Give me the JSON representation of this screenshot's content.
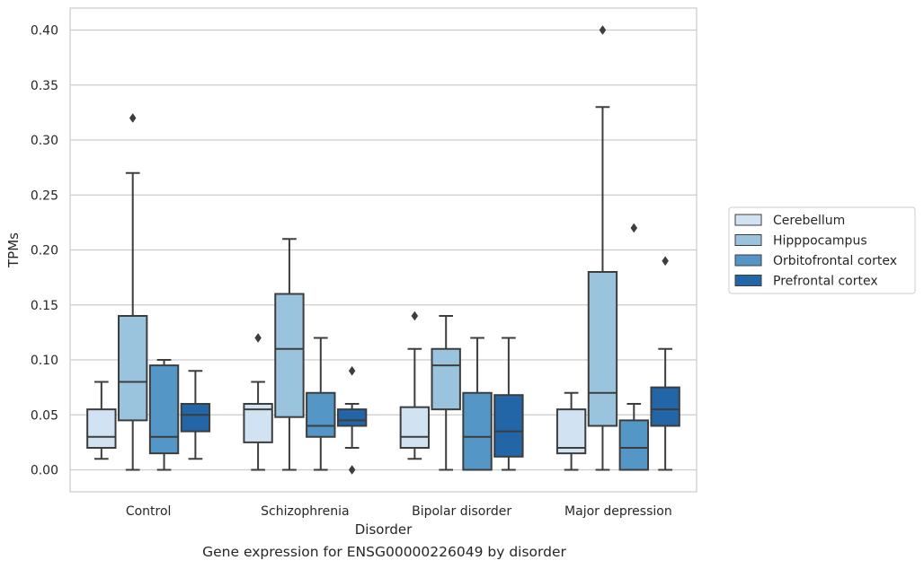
{
  "chart_data": {
    "type": "box",
    "title": "",
    "caption": "Gene expression for ENSG00000226049 by disorder",
    "xlabel": "Disorder",
    "ylabel": "TPMs",
    "ylim": [
      -0.02,
      0.42
    ],
    "yticks": [
      "0.00",
      "0.05",
      "0.10",
      "0.15",
      "0.20",
      "0.25",
      "0.30",
      "0.35",
      "0.40"
    ],
    "grid": true,
    "legend_position": "right",
    "categories": [
      "Control",
      "Schizophrenia",
      "Bipolar disorder",
      "Major depression"
    ],
    "series": [
      {
        "name": "Cerebellum",
        "color": "#d1e2f2",
        "boxes": [
          {
            "whislo": 0.01,
            "q1": 0.02,
            "med": 0.03,
            "q3": 0.055,
            "whishi": 0.08,
            "fliers": []
          },
          {
            "whislo": 0.0,
            "q1": 0.025,
            "med": 0.055,
            "q3": 0.06,
            "whishi": 0.08,
            "fliers": [
              0.12
            ]
          },
          {
            "whislo": 0.01,
            "q1": 0.02,
            "med": 0.03,
            "q3": 0.057,
            "whishi": 0.11,
            "fliers": [
              0.14
            ]
          },
          {
            "whislo": 0.0,
            "q1": 0.015,
            "med": 0.02,
            "q3": 0.055,
            "whishi": 0.07,
            "fliers": []
          }
        ]
      },
      {
        "name": "Hipppocampus",
        "color": "#9ac4de",
        "boxes": [
          {
            "whislo": 0.0,
            "q1": 0.045,
            "med": 0.08,
            "q3": 0.14,
            "whishi": 0.27,
            "fliers": [
              0.32
            ]
          },
          {
            "whislo": 0.0,
            "q1": 0.048,
            "med": 0.11,
            "q3": 0.16,
            "whishi": 0.21,
            "fliers": []
          },
          {
            "whislo": 0.0,
            "q1": 0.055,
            "med": 0.095,
            "q3": 0.11,
            "whishi": 0.14,
            "fliers": []
          },
          {
            "whislo": 0.0,
            "q1": 0.04,
            "med": 0.07,
            "q3": 0.18,
            "whishi": 0.33,
            "fliers": [
              0.4
            ]
          }
        ]
      },
      {
        "name": "Orbitofrontal cortex",
        "color": "#5497c6",
        "boxes": [
          {
            "whislo": 0.0,
            "q1": 0.015,
            "med": 0.03,
            "q3": 0.095,
            "whishi": 0.1,
            "fliers": []
          },
          {
            "whislo": 0.0,
            "q1": 0.03,
            "med": 0.04,
            "q3": 0.07,
            "whishi": 0.12,
            "fliers": []
          },
          {
            "whislo": 0.0,
            "q1": 0.0,
            "med": 0.03,
            "q3": 0.07,
            "whishi": 0.12,
            "fliers": []
          },
          {
            "whislo": 0.0,
            "q1": 0.0,
            "med": 0.02,
            "q3": 0.045,
            "whishi": 0.06,
            "fliers": [
              0.22
            ]
          }
        ]
      },
      {
        "name": "Prefrontal cortex",
        "color": "#2366a8",
        "boxes": [
          {
            "whislo": 0.01,
            "q1": 0.035,
            "med": 0.05,
            "q3": 0.06,
            "whishi": 0.09,
            "fliers": []
          },
          {
            "whislo": 0.02,
            "q1": 0.04,
            "med": 0.045,
            "q3": 0.055,
            "whishi": 0.06,
            "fliers": [
              0.09,
              0.0
            ]
          },
          {
            "whislo": 0.0,
            "q1": 0.012,
            "med": 0.035,
            "q3": 0.068,
            "whishi": 0.12,
            "fliers": []
          },
          {
            "whislo": 0.0,
            "q1": 0.04,
            "med": 0.055,
            "q3": 0.075,
            "whishi": 0.11,
            "fliers": [
              0.19
            ]
          }
        ]
      }
    ]
  }
}
